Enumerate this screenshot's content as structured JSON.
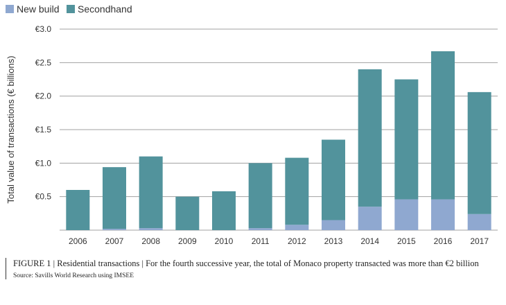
{
  "chart_data": {
    "type": "bar",
    "stacked": true,
    "categories": [
      "2006",
      "2007",
      "2008",
      "2009",
      "2010",
      "2011",
      "2012",
      "2013",
      "2014",
      "2015",
      "2016",
      "2017"
    ],
    "series": [
      {
        "name": "New build",
        "color": "#8fa8d0",
        "values": [
          0.0,
          0.02,
          0.03,
          0.0,
          0.0,
          0.03,
          0.08,
          0.15,
          0.35,
          0.46,
          0.46,
          0.24
        ]
      },
      {
        "name": "Secondhand",
        "color": "#52939c",
        "values": [
          0.6,
          0.92,
          1.07,
          0.5,
          0.58,
          0.97,
          1.0,
          1.2,
          2.05,
          1.79,
          2.21,
          1.82
        ]
      }
    ],
    "yticks": [
      "€0.5",
      "€1.0",
      "€1.5",
      "€2.0",
      "€2.5",
      "€3.0"
    ],
    "ytick_values": [
      0.5,
      1.0,
      1.5,
      2.0,
      2.5,
      3.0
    ],
    "ylim": [
      0,
      3.0
    ],
    "ylabel": "Total value of transactions (€ billions)",
    "xlabel": "",
    "grid": true,
    "legend_position": "top-left"
  },
  "caption": "FIGURE 1 | Residential transactions | For the fourth successive year, the total of Monaco property transacted was more than €2 billion",
  "source": "Source: Savills World Research using IMSEE"
}
